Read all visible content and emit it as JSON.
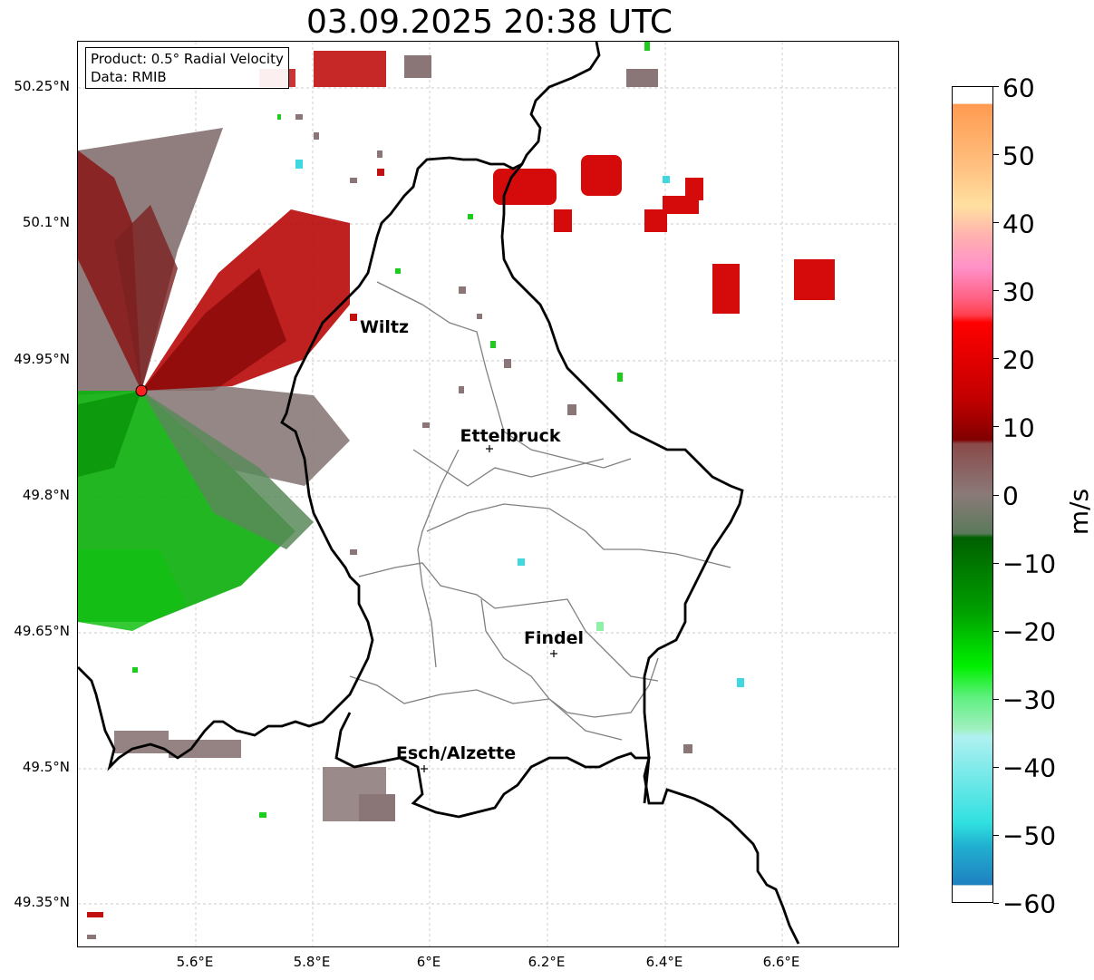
{
  "title": "03.09.2025 20:38 UTC",
  "info_box": {
    "product": "Product: 0.5° Radial Velocity",
    "data_source": "Data: RMIB"
  },
  "map": {
    "lat_ticks": [
      "50.25°N",
      "50.1°N",
      "49.95°N",
      "49.8°N",
      "49.65°N",
      "49.5°N",
      "49.35°N"
    ],
    "lon_ticks": [
      "5.6°E",
      "5.8°E",
      "6°E",
      "6.2°E",
      "6.4°E",
      "6.6°E"
    ],
    "grid": true,
    "cities": [
      {
        "name": "Wiltz"
      },
      {
        "name": "Ettelbruck"
      },
      {
        "name": "Findel"
      },
      {
        "name": "Esch/Alzette"
      }
    ]
  },
  "colorbar": {
    "unit": "m/s",
    "ticks": [
      "60",
      "50",
      "40",
      "30",
      "20",
      "10",
      "0",
      "−10",
      "−20",
      "−30",
      "−40",
      "−50",
      "−60"
    ],
    "range": [
      -60,
      60
    ]
  },
  "colors": {
    "approaching_green": "#10c010",
    "receding_red": "#cc0000",
    "near_zero_gray": "#8a7a78",
    "border": "#000000",
    "canton_lines": "#808080",
    "radar_site": "#ff2020"
  }
}
